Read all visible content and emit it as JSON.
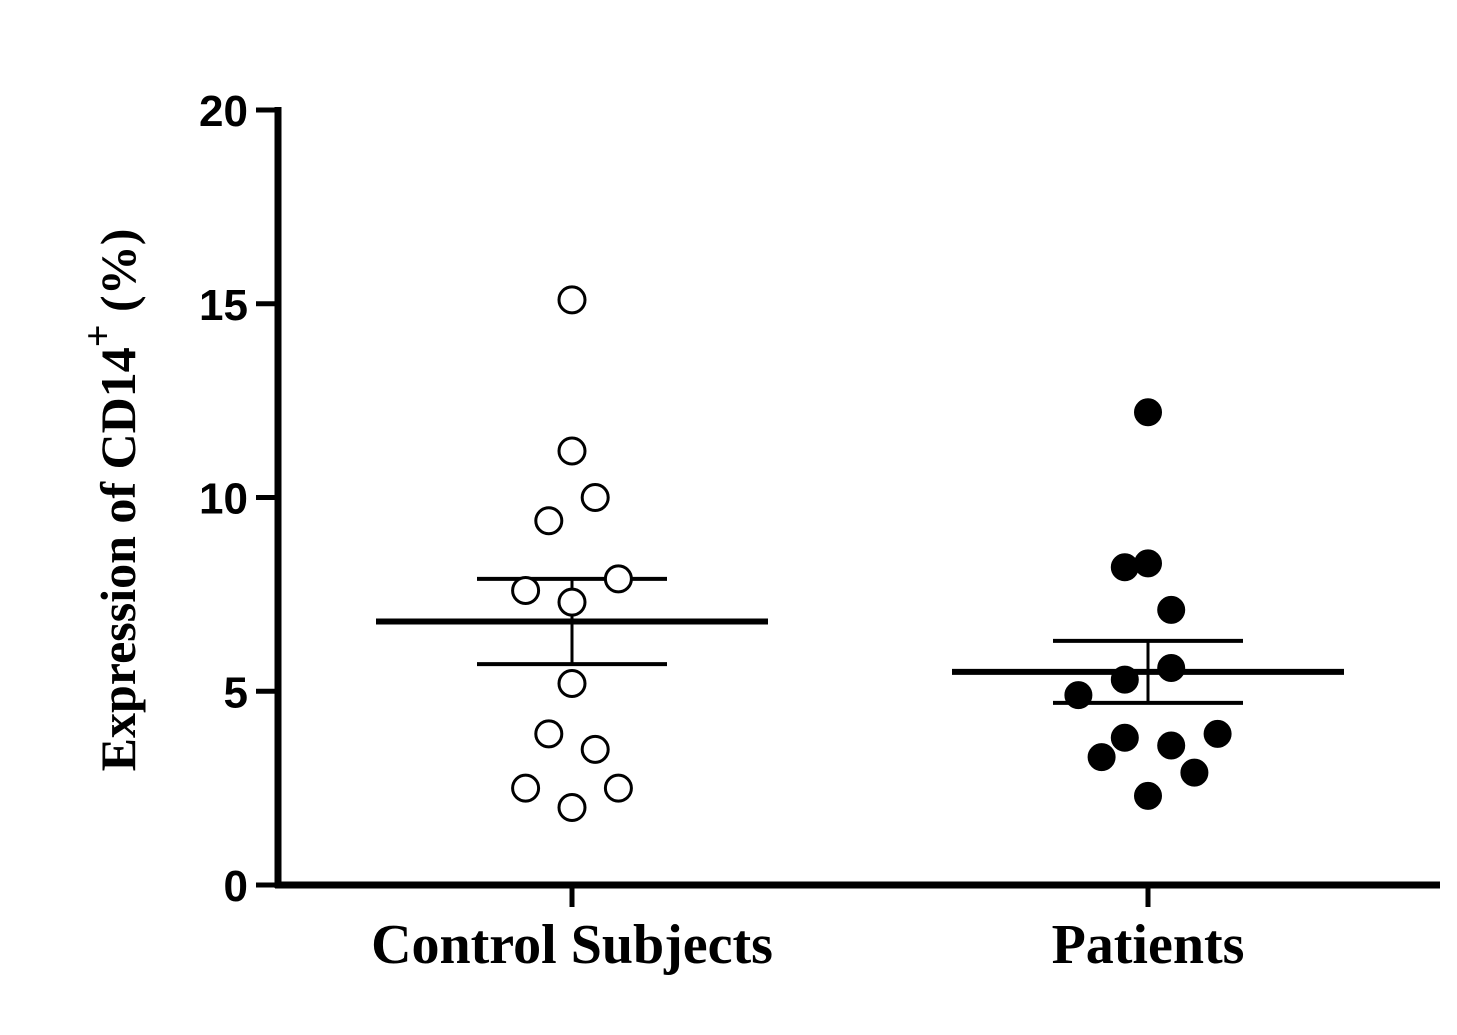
{
  "chart_data": {
    "type": "scatter",
    "title": "",
    "xlabel": "",
    "ylabel": {
      "main": "Expression of CD14",
      "superscript": "+",
      "suffix": " (%)"
    },
    "ylim": [
      0,
      20
    ],
    "yticks": [
      0,
      5,
      10,
      15,
      20
    ],
    "categories": [
      "Control Subjects",
      "Patients"
    ],
    "grid": false,
    "series": [
      {
        "category": "Control Subjects",
        "marker": "open-circle",
        "color": "#000000",
        "points": [
          {
            "jitter": 0.0,
            "y": 15.1
          },
          {
            "jitter": 0.0,
            "y": 11.2
          },
          {
            "jitter": 0.4,
            "y": 10.0
          },
          {
            "jitter": -0.4,
            "y": 9.4
          },
          {
            "jitter": 0.8,
            "y": 7.9
          },
          {
            "jitter": -0.8,
            "y": 7.6
          },
          {
            "jitter": 0.0,
            "y": 7.3
          },
          {
            "jitter": 0.0,
            "y": 5.2
          },
          {
            "jitter": -0.4,
            "y": 3.9
          },
          {
            "jitter": 0.4,
            "y": 3.5
          },
          {
            "jitter": -0.8,
            "y": 2.5
          },
          {
            "jitter": 0.8,
            "y": 2.5
          },
          {
            "jitter": 0.0,
            "y": 2.0
          }
        ],
        "mean": 6.8,
        "sem_upper": 7.9,
        "sem_lower": 5.7
      },
      {
        "category": "Patients",
        "marker": "filled-circle",
        "color": "#000000",
        "points": [
          {
            "jitter": 0.0,
            "y": 12.2
          },
          {
            "jitter": -0.4,
            "y": 8.2
          },
          {
            "jitter": 0.0,
            "y": 8.3
          },
          {
            "jitter": 0.4,
            "y": 7.1
          },
          {
            "jitter": 0.4,
            "y": 5.6
          },
          {
            "jitter": -0.4,
            "y": 5.3
          },
          {
            "jitter": -1.2,
            "y": 4.9
          },
          {
            "jitter": 1.2,
            "y": 3.9
          },
          {
            "jitter": -0.4,
            "y": 3.8
          },
          {
            "jitter": 0.4,
            "y": 3.6
          },
          {
            "jitter": -0.8,
            "y": 3.3
          },
          {
            "jitter": 0.8,
            "y": 2.9
          },
          {
            "jitter": 0.0,
            "y": 2.3
          }
        ],
        "mean": 5.5,
        "sem_upper": 6.3,
        "sem_lower": 4.7
      }
    ]
  }
}
